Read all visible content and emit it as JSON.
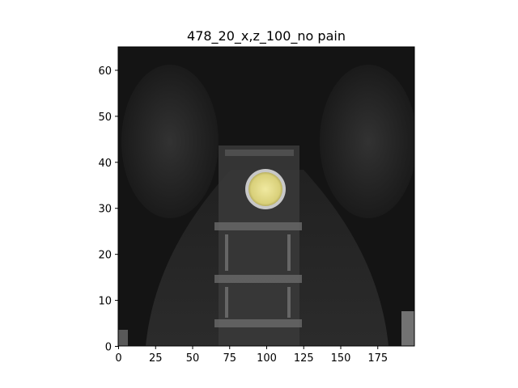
{
  "figure": {
    "title": "478_20_x,z_100_no pain"
  },
  "axes": {
    "x_ticks": [
      "0",
      "25",
      "50",
      "75",
      "100",
      "125",
      "150",
      "175"
    ],
    "x_tick_values": [
      0,
      25,
      50,
      75,
      100,
      125,
      150,
      175
    ],
    "y_ticks": [
      "0",
      "10",
      "20",
      "30",
      "40",
      "50",
      "60"
    ],
    "y_tick_values": [
      0,
      10,
      20,
      30,
      40,
      50,
      60
    ],
    "xlim": [
      0,
      200
    ],
    "ylim": [
      0,
      65
    ]
  },
  "image": {
    "description_icon": "ct-scan-image",
    "overlay_color": "#e8e08a",
    "overlay_center": [
      101,
      34
    ],
    "overlay_radius_data": 11
  }
}
